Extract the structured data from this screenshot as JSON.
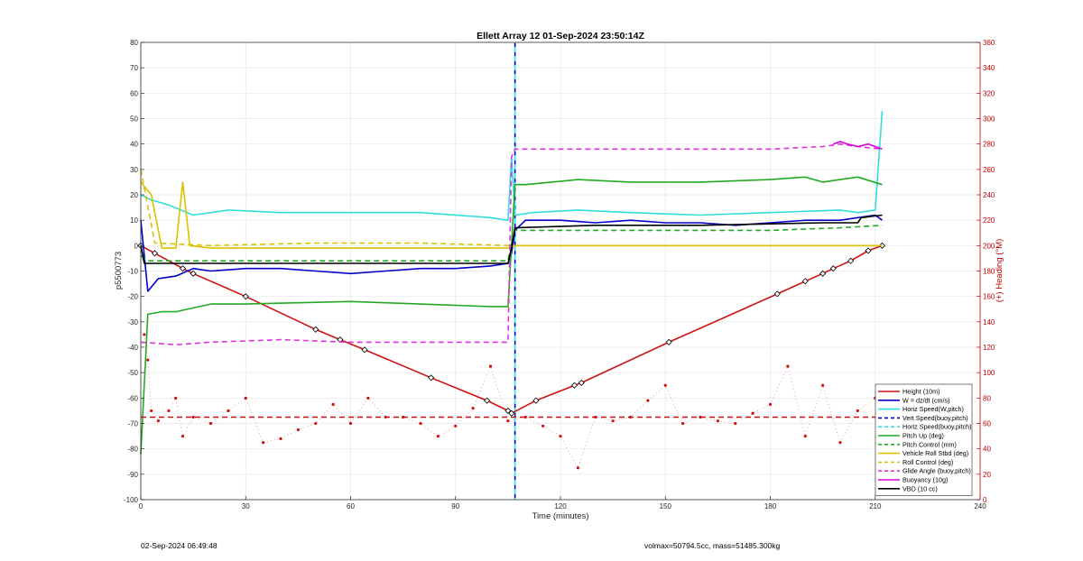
{
  "chart_data": {
    "type": "line",
    "title": "Ellett Array 12 01-Sep-2024 23:50:14Z",
    "xlabel": "Time (minutes)",
    "ylabel": "p5500773",
    "y2label": "(+) Heading (°M)",
    "xlim": [
      0,
      240
    ],
    "ylim": [
      -100,
      80
    ],
    "y2lim": [
      0,
      360
    ],
    "xticks": [
      0,
      30,
      60,
      90,
      120,
      150,
      180,
      210,
      240
    ],
    "yticks": [
      -100,
      -90,
      -80,
      -70,
      -60,
      -50,
      -40,
      -30,
      -20,
      -10,
      0,
      10,
      20,
      30,
      40,
      50,
      60,
      70,
      80
    ],
    "y2ticks": [
      0,
      20,
      40,
      60,
      80,
      100,
      120,
      140,
      160,
      180,
      200,
      220,
      240,
      260,
      280,
      300,
      320,
      340,
      360
    ],
    "grid": true,
    "legend_position": "bottom-right",
    "vertical_lines": [
      {
        "name": "Vert Speed(buoy,pitch)",
        "x": 107,
        "color": "#0000cc"
      },
      {
        "name": "Horiz Speed(buoy,pitch)",
        "x": 107,
        "color": "#33dddd"
      }
    ],
    "series": [
      {
        "name": "Height (10m)",
        "color": "#cc1111",
        "style": "solid",
        "markers": true,
        "x": [
          0,
          4,
          12,
          15,
          30,
          50,
          57,
          64,
          83,
          99,
          105,
          106,
          113,
          124,
          126,
          151,
          182,
          190,
          195,
          198,
          203,
          208,
          212
        ],
        "y": [
          0,
          -3,
          -9,
          -11,
          -20,
          -33,
          -37,
          -41,
          -52,
          -61,
          -65,
          -66,
          -61,
          -55,
          -54,
          -38,
          -19,
          -14,
          -11,
          -9,
          -6,
          -2,
          0
        ]
      },
      {
        "name": "W = dz/dt (cm/s)",
        "color": "#0000cc",
        "style": "solid",
        "x": [
          0,
          2,
          5,
          10,
          15,
          20,
          30,
          40,
          50,
          60,
          70,
          80,
          90,
          100,
          105,
          106,
          107,
          110,
          120,
          130,
          140,
          150,
          160,
          170,
          180,
          190,
          200,
          205,
          210,
          212
        ],
        "y": [
          10,
          -18,
          -13,
          -12,
          -9,
          -10,
          -9,
          -9,
          -10,
          -11,
          -10,
          -9,
          -9,
          -8,
          -7,
          -3,
          6,
          10,
          10,
          9,
          10,
          9,
          9,
          8,
          9,
          10,
          10,
          11,
          12,
          10
        ]
      },
      {
        "name": "Horiz Speed(W,pitch)",
        "color": "#33dddd",
        "style": "solid",
        "x": [
          0,
          3,
          8,
          15,
          25,
          40,
          60,
          80,
          100,
          105,
          106,
          107,
          112,
          125,
          140,
          160,
          180,
          200,
          205,
          210,
          212
        ],
        "y": [
          20,
          18,
          16,
          12,
          14,
          13,
          13,
          13,
          11,
          10,
          35,
          12,
          13,
          14,
          13,
          12,
          13,
          14,
          13,
          14,
          53
        ]
      },
      {
        "name": "Vert Speed(buoy,pitch)",
        "color": "#0000cc",
        "style": "dashed",
        "x": [],
        "y": []
      },
      {
        "name": "Horiz Speed(buoy,pitch)",
        "color": "#33dddd",
        "style": "dashed",
        "x": [],
        "y": []
      },
      {
        "name": "Pitch Up (deg)",
        "color": "#22aa22",
        "style": "solid",
        "x": [
          0,
          2,
          6,
          10,
          20,
          30,
          60,
          80,
          100,
          105,
          107,
          110,
          125,
          140,
          160,
          180,
          190,
          195,
          200,
          205,
          212
        ],
        "y": [
          -82,
          -27,
          -26,
          -26,
          -23,
          -23,
          -22,
          -23,
          -24,
          -24,
          24,
          24,
          26,
          25,
          25,
          26,
          27,
          25,
          26,
          27,
          24
        ]
      },
      {
        "name": "Pitch Control (mm)",
        "color": "#22aa22",
        "style": "dashed",
        "x": [
          0,
          2,
          15,
          60,
          105,
          106,
          107,
          130,
          180,
          200,
          212
        ],
        "y": [
          -4,
          -6,
          -6,
          -6,
          -6,
          1,
          6,
          6,
          6,
          7,
          8
        ]
      },
      {
        "name": "Vehicle Roll Stbd (deg)",
        "color": "#ddc000",
        "style": "solid",
        "x": [
          0,
          3,
          6,
          10,
          12,
          14,
          20,
          30,
          40,
          50,
          60,
          70,
          80,
          100,
          105,
          107,
          120,
          150,
          180,
          200,
          212
        ],
        "y": [
          25,
          20,
          -1,
          -1,
          25,
          0,
          -1,
          -1,
          -1,
          -1,
          -1,
          -1,
          -1,
          -1,
          -1,
          0,
          0,
          0,
          0,
          0,
          0
        ]
      },
      {
        "name": "Roll Control (deg)",
        "color": "#ddc000",
        "style": "dashed",
        "x": [
          0,
          4,
          20,
          50,
          80,
          106,
          107,
          130,
          160,
          190,
          212
        ],
        "y": [
          30,
          1,
          0,
          1,
          1,
          0,
          0,
          0,
          0,
          0,
          0
        ]
      },
      {
        "name": "Glide Angle (buoy,pitch)",
        "color": "#dd33dd",
        "style": "dashed",
        "x": [
          0,
          10,
          20,
          40,
          60,
          80,
          100,
          105,
          106,
          107,
          120,
          140,
          160,
          180,
          195,
          200,
          205,
          212
        ],
        "y": [
          -38,
          -39,
          -38,
          -37,
          -38,
          -38,
          -38,
          -38,
          35,
          38,
          38,
          38,
          38,
          38,
          39,
          40,
          39,
          38
        ]
      },
      {
        "name": "Buoyancy (10g)",
        "color": "#dd00dd",
        "style": "solid",
        "x": [
          198,
          200,
          202,
          205,
          208,
          212
        ],
        "y": [
          40,
          41,
          40,
          39,
          40,
          38
        ]
      },
      {
        "name": "VBD (10 cc)",
        "color": "#000000",
        "style": "solid",
        "x": [
          0,
          1,
          20,
          60,
          100,
          105,
          106,
          107,
          130,
          160,
          195,
          205,
          206,
          212
        ],
        "y": [
          0,
          -7,
          -7,
          -7,
          -7,
          -7,
          -1,
          7,
          8,
          8,
          9,
          9,
          11,
          12
        ]
      },
      {
        "name": "Heading",
        "axis": "right",
        "color": "#cc1111",
        "style": "dotted",
        "x": [
          1,
          2,
          3,
          5,
          8,
          10,
          12,
          15,
          20,
          25,
          30,
          35,
          40,
          45,
          50,
          55,
          60,
          65,
          70,
          75,
          80,
          85,
          90,
          95,
          100,
          105,
          110,
          115,
          120,
          125,
          130,
          135,
          140,
          145,
          150,
          155,
          160,
          165,
          170,
          175,
          180,
          185,
          190,
          195,
          200,
          205,
          210,
          212
        ],
        "y": [
          130,
          110,
          70,
          62,
          70,
          80,
          50,
          65,
          60,
          70,
          80,
          45,
          48,
          55,
          60,
          75,
          60,
          80,
          65,
          65,
          60,
          50,
          58,
          72,
          105,
          62,
          65,
          58,
          50,
          25,
          65,
          62,
          65,
          78,
          90,
          60,
          65,
          62,
          60,
          68,
          75,
          105,
          50,
          90,
          45,
          70,
          80,
          65
        ]
      },
      {
        "name": "Heading target",
        "axis": "right",
        "color": "#cc1111",
        "style": "dashed",
        "x": [
          0,
          212
        ],
        "y": [
          65,
          65
        ]
      }
    ]
  },
  "legend": [
    {
      "label": "Height (10m)",
      "color": "#cc1111",
      "style": "solid"
    },
    {
      "label": "W = dz/dt (cm/s)",
      "color": "#0000cc",
      "style": "solid"
    },
    {
      "label": "Horiz Speed(W,pitch)",
      "color": "#33dddd",
      "style": "solid"
    },
    {
      "label": "Vert Speed(buoy,pitch)",
      "color": "#0000cc",
      "style": "dashed"
    },
    {
      "label": "Horiz Speed(buoy,pitch)",
      "color": "#33dddd",
      "style": "dashed"
    },
    {
      "label": "Pitch Up (deg)",
      "color": "#22aa22",
      "style": "solid"
    },
    {
      "label": "Pitch Control (mm)",
      "color": "#22aa22",
      "style": "dashed"
    },
    {
      "label": "Vehicle Roll Stbd (deg)",
      "color": "#ddc000",
      "style": "solid"
    },
    {
      "label": "Roll Control (deg)",
      "color": "#ddc000",
      "style": "dashed"
    },
    {
      "label": "Glide Angle (buoy,pitch)",
      "color": "#dd33dd",
      "style": "dashed"
    },
    {
      "label": "Buoyancy (10g)",
      "color": "#dd00dd",
      "style": "solid"
    },
    {
      "label": "VBD (10 cc)",
      "color": "#000000",
      "style": "solid"
    }
  ],
  "footer": {
    "date": "02-Sep-2024 06:49:48",
    "volmax": "volmax=50794.5cc, mass=51485.300kg"
  }
}
